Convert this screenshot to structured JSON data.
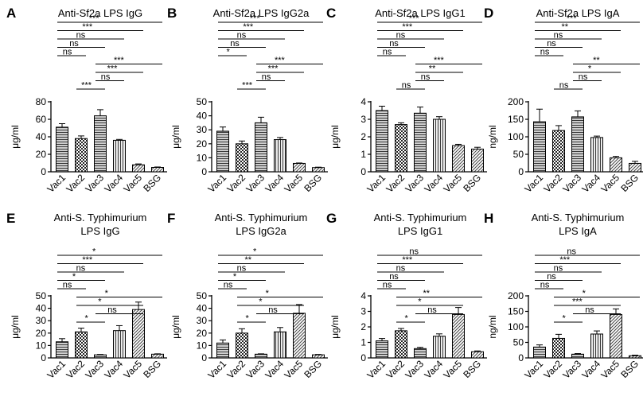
{
  "figure_layout": "2 rows x 4 columns of bar charts",
  "chart_data": [
    {
      "type": "bar",
      "panel": "A",
      "title": "Anti-Sf2a LPS IgG",
      "title_lines": [
        "Anti-Sf2a LPS IgG"
      ],
      "ylabel": "μg/ml",
      "ylim": [
        0,
        80
      ],
      "yticks": [
        0,
        20,
        40,
        60,
        80
      ],
      "ytick_labels": [
        "0",
        "20",
        "40",
        "60",
        "80"
      ],
      "categories": [
        "Vac1",
        "Vac2",
        "Vac3",
        "Vac4",
        "Vac5",
        "BSG"
      ],
      "patterns": [
        "hlines",
        "checker",
        "hlines",
        "vlines",
        "diag",
        "diag"
      ],
      "values": [
        51,
        38,
        64,
        36,
        8,
        5
      ],
      "errors": [
        4,
        3,
        7,
        1,
        1,
        0.5
      ],
      "comparisons": [
        {
          "from": 0,
          "to": 5,
          "label": "***"
        },
        {
          "from": 0,
          "to": 4,
          "label": "***"
        },
        {
          "from": 0,
          "to": 3,
          "label": "ns"
        },
        {
          "from": 0,
          "to": 2,
          "label": "ns"
        },
        {
          "from": 0,
          "to": 1,
          "label": "ns"
        },
        {
          "from": 2,
          "to": 5,
          "label": "***"
        },
        {
          "from": 2,
          "to": 4,
          "label": "***"
        },
        {
          "from": 2,
          "to": 3,
          "label": "ns"
        },
        {
          "from": 1,
          "to": 2,
          "label": "***"
        }
      ]
    },
    {
      "type": "bar",
      "panel": "B",
      "title": "Anti-Sf2a LPS IgG2a",
      "title_lines": [
        "Anti-Sf2a LPS IgG2a"
      ],
      "ylabel": "μg/ml",
      "ylim": [
        0,
        50
      ],
      "yticks": [
        0,
        10,
        20,
        30,
        40,
        50
      ],
      "ytick_labels": [
        "0",
        "10",
        "20",
        "30",
        "40",
        "50"
      ],
      "categories": [
        "Vac1",
        "Vac2",
        "Vac3",
        "Vac4",
        "Vac5",
        "BSG"
      ],
      "patterns": [
        "hlines",
        "checker",
        "hlines",
        "vlines",
        "diag",
        "diag"
      ],
      "values": [
        29,
        20,
        35,
        23,
        6,
        3
      ],
      "errors": [
        3,
        2,
        4,
        1.5,
        0.3,
        0.3
      ],
      "comparisons": [
        {
          "from": 0,
          "to": 5,
          "label": "***"
        },
        {
          "from": 0,
          "to": 4,
          "label": "***"
        },
        {
          "from": 0,
          "to": 3,
          "label": "ns"
        },
        {
          "from": 0,
          "to": 2,
          "label": "ns"
        },
        {
          "from": 0,
          "to": 1,
          "label": "*"
        },
        {
          "from": 2,
          "to": 5,
          "label": "***"
        },
        {
          "from": 2,
          "to": 4,
          "label": "***"
        },
        {
          "from": 2,
          "to": 3,
          "label": "ns"
        },
        {
          "from": 1,
          "to": 2,
          "label": "***"
        }
      ]
    },
    {
      "type": "bar",
      "panel": "C",
      "title": "Anti-Sf2a LPS IgG1",
      "title_lines": [
        "Anti-Sf2a LPS IgG1"
      ],
      "ylabel": "μg/ml",
      "ylim": [
        0,
        4
      ],
      "yticks": [
        0,
        1,
        2,
        3,
        4
      ],
      "ytick_labels": [
        "0",
        "1",
        "2",
        "3",
        "4"
      ],
      "categories": [
        "Vac1",
        "Vac2",
        "Vac3",
        "Vac4",
        "Vac5",
        "BSG"
      ],
      "patterns": [
        "hlines",
        "checker",
        "hlines",
        "vlines",
        "diag",
        "diag"
      ],
      "values": [
        3.5,
        2.7,
        3.35,
        3.0,
        1.5,
        1.3
      ],
      "errors": [
        0.25,
        0.1,
        0.35,
        0.15,
        0.07,
        0.1
      ],
      "comparisons": [
        {
          "from": 0,
          "to": 5,
          "label": "***"
        },
        {
          "from": 0,
          "to": 4,
          "label": "***"
        },
        {
          "from": 0,
          "to": 3,
          "label": "ns"
        },
        {
          "from": 0,
          "to": 2,
          "label": "ns"
        },
        {
          "from": 0,
          "to": 1,
          "label": "ns"
        },
        {
          "from": 2,
          "to": 5,
          "label": "***"
        },
        {
          "from": 2,
          "to": 4,
          "label": "**"
        },
        {
          "from": 2,
          "to": 3,
          "label": "ns"
        },
        {
          "from": 1,
          "to": 2,
          "label": "ns"
        }
      ]
    },
    {
      "type": "bar",
      "panel": "D",
      "title": "Anti-Sf2a LPS IgA",
      "title_lines": [
        "Anti-Sf2a LPS IgA"
      ],
      "ylabel": "ng/ml",
      "ylim": [
        0,
        200
      ],
      "yticks": [
        0,
        50,
        100,
        150,
        200
      ],
      "ytick_labels": [
        "0",
        "50",
        "100",
        "150",
        "200"
      ],
      "categories": [
        "Vac1",
        "Vac2",
        "Vac3",
        "Vac4",
        "Vac5",
        "BSG"
      ],
      "patterns": [
        "hlines",
        "checker",
        "hlines",
        "vlines",
        "diag",
        "diag"
      ],
      "values": [
        143,
        118,
        157,
        98,
        40,
        24
      ],
      "errors": [
        36,
        14,
        17,
        4,
        4,
        6
      ],
      "comparisons": [
        {
          "from": 0,
          "to": 5,
          "label": "***"
        },
        {
          "from": 0,
          "to": 4,
          "label": "**"
        },
        {
          "from": 0,
          "to": 3,
          "label": "ns"
        },
        {
          "from": 0,
          "to": 2,
          "label": "ns"
        },
        {
          "from": 0,
          "to": 1,
          "label": "ns"
        },
        {
          "from": 2,
          "to": 5,
          "label": "**"
        },
        {
          "from": 2,
          "to": 4,
          "label": "*"
        },
        {
          "from": 2,
          "to": 3,
          "label": "ns"
        },
        {
          "from": 1,
          "to": 2,
          "label": "ns"
        }
      ]
    },
    {
      "type": "bar",
      "panel": "E",
      "title": "Anti-S. Typhimurium LPS IgG",
      "title_lines": [
        "Anti-S. Typhimurium",
        "LPS IgG"
      ],
      "ylabel": "μg/ml",
      "ylim": [
        0,
        50
      ],
      "yticks": [
        0,
        10,
        20,
        30,
        40,
        50
      ],
      "ytick_labels": [
        "0",
        "10",
        "20",
        "30",
        "40",
        "50"
      ],
      "categories": [
        "Vac1",
        "Vac2",
        "Vac3",
        "Vac4",
        "Vac5",
        "BSG"
      ],
      "patterns": [
        "hlines",
        "checker",
        "hlines",
        "vlines",
        "diag",
        "diag"
      ],
      "values": [
        13,
        21,
        2.5,
        22,
        39,
        3
      ],
      "errors": [
        2.5,
        3,
        0.3,
        4,
        6,
        0.3
      ],
      "comparisons": [
        {
          "from": 0,
          "to": 5,
          "label": "*"
        },
        {
          "from": 0,
          "to": 4,
          "label": "***"
        },
        {
          "from": 0,
          "to": 3,
          "label": "ns"
        },
        {
          "from": 0,
          "to": 2,
          "label": "*"
        },
        {
          "from": 0,
          "to": 1,
          "label": "ns"
        },
        {
          "from": 1,
          "to": 5,
          "label": "*"
        },
        {
          "from": 1,
          "to": 4,
          "label": "*"
        },
        {
          "from": 2,
          "to": 4,
          "label": "ns"
        },
        {
          "from": 1,
          "to": 2,
          "label": "*"
        }
      ]
    },
    {
      "type": "bar",
      "panel": "F",
      "title": "Anti-S. Typhimurium LPS IgG2a",
      "title_lines": [
        "Anti-S. Typhimurium",
        "LPS IgG2a"
      ],
      "ylabel": "μg/ml",
      "ylim": [
        0,
        50
      ],
      "yticks": [
        0,
        10,
        20,
        30,
        40,
        50
      ],
      "ytick_labels": [
        "0",
        "10",
        "20",
        "30",
        "40",
        "50"
      ],
      "categories": [
        "Vac1",
        "Vac2",
        "Vac3",
        "Vac4",
        "Vac5",
        "BSG"
      ],
      "patterns": [
        "hlines",
        "checker",
        "hlines",
        "vlines",
        "diag",
        "diag"
      ],
      "values": [
        12,
        20,
        3,
        21,
        36,
        2.5
      ],
      "errors": [
        2.5,
        3.5,
        0.3,
        3.5,
        7,
        0.3
      ],
      "comparisons": [
        {
          "from": 0,
          "to": 5,
          "label": "*"
        },
        {
          "from": 0,
          "to": 4,
          "label": "**"
        },
        {
          "from": 0,
          "to": 3,
          "label": "ns"
        },
        {
          "from": 0,
          "to": 2,
          "label": "*"
        },
        {
          "from": 0,
          "to": 1,
          "label": "ns"
        },
        {
          "from": 1,
          "to": 5,
          "label": "*"
        },
        {
          "from": 1,
          "to": 4,
          "label": "*"
        },
        {
          "from": 2,
          "to": 4,
          "label": "ns"
        },
        {
          "from": 1,
          "to": 2,
          "label": "*"
        }
      ]
    },
    {
      "type": "bar",
      "panel": "G",
      "title": "Anti-S. Typhimurium LPS IgG1",
      "title_lines": [
        "Anti-S. Typhimurium",
        "LPS IgG1"
      ],
      "ylabel": "μg/ml",
      "ylim": [
        0,
        4
      ],
      "yticks": [
        0,
        1,
        2,
        3,
        4
      ],
      "ytick_labels": [
        "0",
        "1",
        "2",
        "3",
        "4"
      ],
      "categories": [
        "Vac1",
        "Vac2",
        "Vac3",
        "Vac4",
        "Vac5",
        "BSG"
      ],
      "patterns": [
        "hlines",
        "checker",
        "hlines",
        "vlines",
        "diag",
        "diag"
      ],
      "values": [
        1.1,
        1.75,
        0.6,
        1.4,
        2.8,
        0.4
      ],
      "errors": [
        0.15,
        0.15,
        0.08,
        0.15,
        0.45,
        0.05
      ],
      "comparisons": [
        {
          "from": 0,
          "to": 5,
          "label": "ns"
        },
        {
          "from": 0,
          "to": 4,
          "label": "***"
        },
        {
          "from": 0,
          "to": 3,
          "label": "ns"
        },
        {
          "from": 0,
          "to": 2,
          "label": "ns"
        },
        {
          "from": 0,
          "to": 1,
          "label": "ns"
        },
        {
          "from": 1,
          "to": 5,
          "label": "**"
        },
        {
          "from": 1,
          "to": 4,
          "label": "*"
        },
        {
          "from": 2,
          "to": 4,
          "label": "ns"
        },
        {
          "from": 1,
          "to": 2,
          "label": "*"
        }
      ]
    },
    {
      "type": "bar",
      "panel": "H",
      "title": "Anti-S. Typhimurium LPS IgA",
      "title_lines": [
        "Anti-S. Typhimurium",
        "LPS IgA"
      ],
      "ylabel": "ng/ml",
      "ylim": [
        0,
        200
      ],
      "yticks": [
        0,
        50,
        100,
        150,
        200
      ],
      "ytick_labels": [
        "0",
        "50",
        "100",
        "150",
        "200"
      ],
      "categories": [
        "Vac1",
        "Vac2",
        "Vac3",
        "Vac4",
        "Vac5",
        "BSG"
      ],
      "patterns": [
        "hlines",
        "checker",
        "hlines",
        "vlines",
        "diag",
        "diag"
      ],
      "values": [
        35,
        63,
        12,
        77,
        140,
        7
      ],
      "errors": [
        7,
        13,
        2,
        10,
        18,
        2
      ],
      "comparisons": [
        {
          "from": 0,
          "to": 5,
          "label": "ns"
        },
        {
          "from": 0,
          "to": 4,
          "label": "***"
        },
        {
          "from": 0,
          "to": 3,
          "label": "ns"
        },
        {
          "from": 0,
          "to": 2,
          "label": "ns"
        },
        {
          "from": 0,
          "to": 1,
          "label": "ns"
        },
        {
          "from": 1,
          "to": 5,
          "label": "*"
        },
        {
          "from": 1,
          "to": 4,
          "label": "***"
        },
        {
          "from": 2,
          "to": 4,
          "label": "ns"
        },
        {
          "from": 1,
          "to": 2,
          "label": "*"
        }
      ]
    }
  ]
}
